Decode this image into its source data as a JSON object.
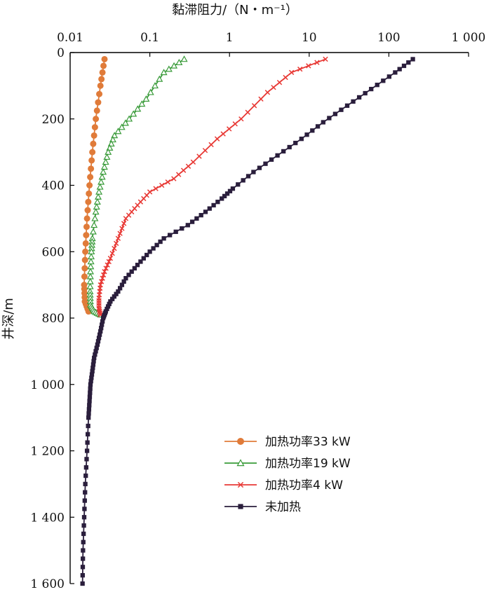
{
  "chart_data": {
    "type": "line",
    "xlabel": "黏滞阻力/（N・m⁻¹）",
    "ylabel": "井深/m",
    "x_scale": "log",
    "xlim": [
      0.01,
      1000
    ],
    "ylim": [
      0,
      1600
    ],
    "y_inverted": true,
    "x_axis_position": "top",
    "x_tick_values": [
      0.01,
      0.1,
      1,
      10,
      100,
      1000
    ],
    "x_tick_labels": [
      "0.01",
      "0.1",
      "1",
      "10",
      "100",
      "1 000"
    ],
    "y_tick_values": [
      0,
      200,
      400,
      600,
      800,
      1000,
      1200,
      1400,
      1600
    ],
    "y_tick_labels": [
      "0",
      "200",
      "400",
      "600",
      "800",
      "1 000",
      "1 200",
      "1 400",
      "1 600"
    ],
    "grid": false,
    "legend_position": "bottom-right",
    "series": [
      {
        "name": "加热功率33 kW",
        "color": "#e07b39",
        "marker": "circle",
        "points": [
          [
            0.027,
            20
          ],
          [
            0.024,
            100
          ],
          [
            0.021,
            200
          ],
          [
            0.019,
            300
          ],
          [
            0.0175,
            400
          ],
          [
            0.0163,
            500
          ],
          [
            0.0155,
            600
          ],
          [
            0.015,
            700
          ],
          [
            0.0153,
            750
          ],
          [
            0.017,
            780
          ]
        ]
      },
      {
        "name": "加热功率19 kW",
        "color": "#3a9b3a",
        "marker": "triangle",
        "points": [
          [
            0.27,
            20
          ],
          [
            0.15,
            60
          ],
          [
            0.09,
            140
          ],
          [
            0.055,
            200
          ],
          [
            0.036,
            250
          ],
          [
            0.03,
            300
          ],
          [
            0.026,
            360
          ],
          [
            0.023,
            420
          ],
          [
            0.021,
            480
          ],
          [
            0.019,
            560
          ],
          [
            0.0185,
            600
          ],
          [
            0.018,
            660
          ],
          [
            0.0178,
            720
          ],
          [
            0.018,
            760
          ],
          [
            0.02,
            780
          ],
          [
            0.024,
            790
          ]
        ]
      },
      {
        "name": "加热功率4 kW",
        "color": "#e83a36",
        "marker": "x",
        "points": [
          [
            16,
            20
          ],
          [
            6,
            60
          ],
          [
            3,
            120
          ],
          [
            1.4,
            200
          ],
          [
            0.7,
            260
          ],
          [
            0.35,
            330
          ],
          [
            0.2,
            380
          ],
          [
            0.1,
            420
          ],
          [
            0.07,
            460
          ],
          [
            0.05,
            500
          ],
          [
            0.04,
            560
          ],
          [
            0.032,
            620
          ],
          [
            0.027,
            660
          ],
          [
            0.024,
            700
          ],
          [
            0.023,
            740
          ],
          [
            0.023,
            770
          ],
          [
            0.024,
            790
          ]
        ]
      },
      {
        "name": "未加热",
        "color": "#2a1e3c",
        "marker": "square",
        "points": [
          [
            200,
            20
          ],
          [
            120,
            60
          ],
          [
            60,
            110
          ],
          [
            30,
            160
          ],
          [
            15,
            210
          ],
          [
            8,
            260
          ],
          [
            4,
            310
          ],
          [
            2,
            360
          ],
          [
            1.1,
            410
          ],
          [
            0.8,
            440
          ],
          [
            0.5,
            480
          ],
          [
            0.3,
            520
          ],
          [
            0.15,
            560
          ],
          [
            0.1,
            600
          ],
          [
            0.07,
            640
          ],
          [
            0.05,
            680
          ],
          [
            0.04,
            720
          ],
          [
            0.032,
            750
          ],
          [
            0.028,
            780
          ],
          [
            0.026,
            800
          ],
          [
            0.024,
            840
          ],
          [
            0.022,
            880
          ],
          [
            0.02,
            920
          ],
          [
            0.019,
            960
          ],
          [
            0.018,
            1000
          ],
          [
            0.0175,
            1050
          ],
          [
            0.017,
            1100
          ],
          [
            0.0163,
            1200
          ],
          [
            0.0155,
            1300
          ],
          [
            0.015,
            1400
          ],
          [
            0.0145,
            1500
          ],
          [
            0.0143,
            1600
          ]
        ]
      }
    ]
  }
}
